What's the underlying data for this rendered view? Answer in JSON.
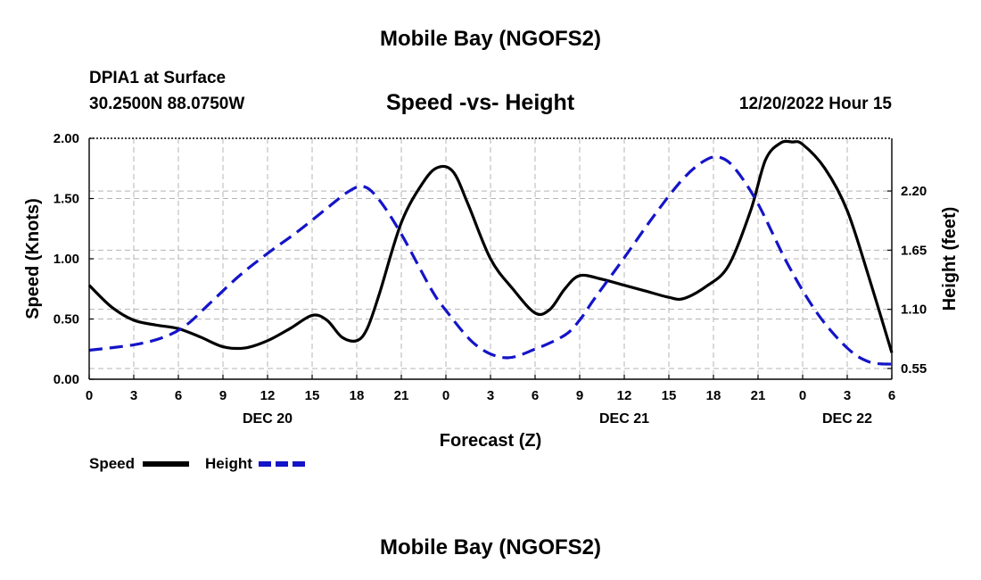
{
  "header": {
    "title": "Mobile Bay (NGOFS2)",
    "station_name": "DPIA1 at Surface",
    "station_coords": "30.2500N  88.0750W",
    "timestamp": "12/20/2022 Hour 15"
  },
  "footer": {
    "title": "Mobile Bay (NGOFS2)"
  },
  "colors": {
    "speed": "#000000",
    "height": "#1414c8",
    "grid": "#b4b4b4"
  },
  "chart_data": {
    "type": "line",
    "title": "Speed -vs- Height",
    "xlabel": "Forecast (Z)",
    "ylabel_left": "Speed (Knots)",
    "ylabel_right": "Height (feet)",
    "x_unit": "hours from 12/20/2022 00Z",
    "xlim": [
      0,
      54
    ],
    "ylim_left": [
      0,
      2.0
    ],
    "ylim_right": [
      0.45,
      2.69
    ],
    "x_ticks": [
      0,
      3,
      6,
      9,
      12,
      15,
      18,
      21,
      24,
      27,
      30,
      33,
      36,
      39,
      42,
      45,
      48,
      51,
      54
    ],
    "x_tick_labels": [
      "0",
      "3",
      "6",
      "9",
      "12",
      "15",
      "18",
      "21",
      "0",
      "3",
      "6",
      "9",
      "12",
      "15",
      "18",
      "21",
      "0",
      "3",
      "6"
    ],
    "date_labels": [
      {
        "x": 12,
        "label": "DEC 20"
      },
      {
        "x": 36,
        "label": "DEC 21"
      },
      {
        "x": 51,
        "label": "DEC 22"
      }
    ],
    "y_left_ticks": [
      0,
      0.5,
      1.0,
      1.5,
      2.0
    ],
    "y_left_tick_labels": [
      "0.00",
      "0.50",
      "1.00",
      "1.50",
      "2.00"
    ],
    "y_right_ticks": [
      0.55,
      1.1,
      1.65,
      2.2
    ],
    "y_right_tick_labels": [
      "0.55",
      "1.10",
      "1.65",
      "2.20"
    ],
    "grid": true,
    "legend_placement": "bottom-left",
    "series": [
      {
        "name": "Speed",
        "axis": "left",
        "style": "solid",
        "x": [
          0,
          1.5,
          3,
          4.5,
          6,
          7.5,
          9,
          10.5,
          12,
          13.5,
          15,
          16,
          17,
          18,
          18.7,
          19.5,
          21,
          22.5,
          23.5,
          24.5,
          25.5,
          27,
          28.5,
          30,
          31,
          32,
          33,
          34.5,
          36,
          37.5,
          39,
          40,
          41.5,
          43,
          44.5,
          45.5,
          46.5,
          47.3,
          48,
          49.5,
          51,
          52.5,
          54
        ],
        "values": [
          0.78,
          0.6,
          0.49,
          0.45,
          0.42,
          0.35,
          0.27,
          0.26,
          0.32,
          0.42,
          0.53,
          0.49,
          0.35,
          0.32,
          0.42,
          0.7,
          1.3,
          1.64,
          1.76,
          1.72,
          1.45,
          1.0,
          0.75,
          0.55,
          0.58,
          0.75,
          0.86,
          0.83,
          0.78,
          0.73,
          0.68,
          0.67,
          0.77,
          0.94,
          1.4,
          1.82,
          1.96,
          1.97,
          1.95,
          1.75,
          1.4,
          0.83,
          0.22
        ]
      },
      {
        "name": "Height",
        "axis": "right",
        "style": "dashed",
        "x": [
          0,
          3,
          5,
          6.5,
          8,
          10,
          12,
          14,
          16,
          17.5,
          18.5,
          19.5,
          21,
          23,
          24,
          26,
          28,
          30,
          32,
          33,
          34,
          36,
          38,
          40,
          41.5,
          42.5,
          43.5,
          45,
          47,
          49,
          51,
          52.5,
          54
        ],
        "values": [
          0.72,
          0.77,
          0.84,
          0.95,
          1.14,
          1.4,
          1.62,
          1.82,
          2.04,
          2.2,
          2.24,
          2.12,
          1.8,
          1.29,
          1.09,
          0.77,
          0.65,
          0.73,
          0.86,
          1.0,
          1.2,
          1.58,
          1.97,
          2.32,
          2.49,
          2.51,
          2.4,
          2.08,
          1.52,
          1.06,
          0.74,
          0.61,
          0.59
        ]
      }
    ]
  }
}
